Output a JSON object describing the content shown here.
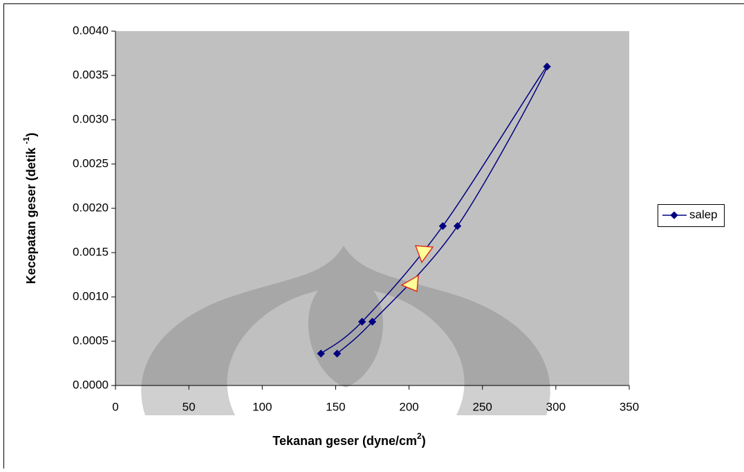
{
  "chart_data": {
    "type": "line",
    "xlabel": [
      "Tekanan geser (dyne/cm",
      "2",
      ")"
    ],
    "ylabel": [
      "Kecepatan geser (detik ",
      "-1",
      ")"
    ],
    "x": [
      140,
      168,
      223,
      294,
      233,
      175,
      151
    ],
    "series": [
      {
        "name": "salep",
        "color": "#000080",
        "values": [
          0.00036,
          0.00072,
          0.0018,
          0.0036,
          0.0018,
          0.00072,
          0.00036
        ]
      }
    ],
    "xlim": [
      0,
      350
    ],
    "xticks": [
      0,
      50,
      100,
      150,
      200,
      250,
      300,
      350
    ],
    "ylim": [
      0,
      0.004
    ],
    "yticks": [
      {
        "value": 0,
        "label": "0.0000"
      },
      {
        "value": 0.0005,
        "label": "0.0005"
      },
      {
        "value": 0.001,
        "label": "0.0010"
      },
      {
        "value": 0.0015,
        "label": "0.0015"
      },
      {
        "value": 0.002,
        "label": "0.0020"
      },
      {
        "value": 0.0025,
        "label": "0.0025"
      },
      {
        "value": 0.003,
        "label": "0.0030"
      },
      {
        "value": 0.0035,
        "label": "0.0035"
      },
      {
        "value": 0.004,
        "label": "0.0040"
      }
    ],
    "plot_background": "#c0c0c0",
    "legend": "right"
  }
}
